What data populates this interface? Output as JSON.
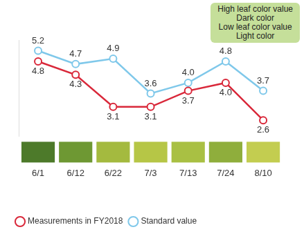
{
  "chart_data": {
    "type": "line",
    "categories": [
      "6/1",
      "6/12",
      "6/22",
      "7/3",
      "7/13",
      "7/24",
      "8/10"
    ],
    "series": [
      {
        "name": "Measurements in FY2018",
        "color": "#d9283a",
        "marker": "circle",
        "values": [
          4.8,
          4.3,
          3.1,
          3.1,
          3.7,
          4.0,
          2.6
        ],
        "value_labels": [
          "4.8",
          "4.3",
          "3.1",
          "3.1",
          "3.7",
          "4.0",
          "2.6"
        ]
      },
      {
        "name": "Standard value",
        "color": "#7fc8ea",
        "marker": "circle",
        "values": [
          5.2,
          4.7,
          4.9,
          3.6,
          4.0,
          4.8,
          3.7
        ],
        "value_labels": [
          "5.2",
          "4.7",
          "4.9",
          "3.6",
          "4.0",
          "4.8",
          "3.7"
        ]
      }
    ],
    "annotations": [
      "High leaf color value",
      "Dark color",
      "Low leaf color value",
      "Light color"
    ],
    "ylim": [
      2,
      5.6
    ],
    "yticks": [],
    "tick_labels": "x",
    "grid": false,
    "legend": "bottom",
    "data_labels": true
  }
}
